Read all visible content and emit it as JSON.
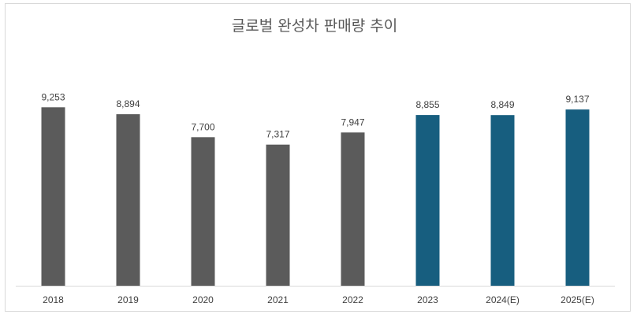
{
  "chart_data": {
    "type": "bar",
    "title": "글로벌 완성차 판매량 추이",
    "xlabel": "",
    "ylabel": "",
    "categories": [
      "2018",
      "2019",
      "2020",
      "2021",
      "2022",
      "2023",
      "2024(E)",
      "2025(E)"
    ],
    "values": [
      9253,
      8894,
      7700,
      7317,
      7947,
      8855,
      8849,
      9137
    ],
    "value_labels": [
      "9,253",
      "8,894",
      "7,700",
      "7,317",
      "7,947",
      "8,855",
      "8,849",
      "9,137"
    ],
    "ylim": [
      0,
      10000
    ],
    "grid": false,
    "legend": "none",
    "colors": {
      "past": "#5b5b5b",
      "recent": "#175e7f",
      "axis": "#d9d9d9"
    },
    "bar_color_group": [
      "past",
      "past",
      "past",
      "past",
      "past",
      "recent",
      "recent",
      "recent"
    ]
  }
}
